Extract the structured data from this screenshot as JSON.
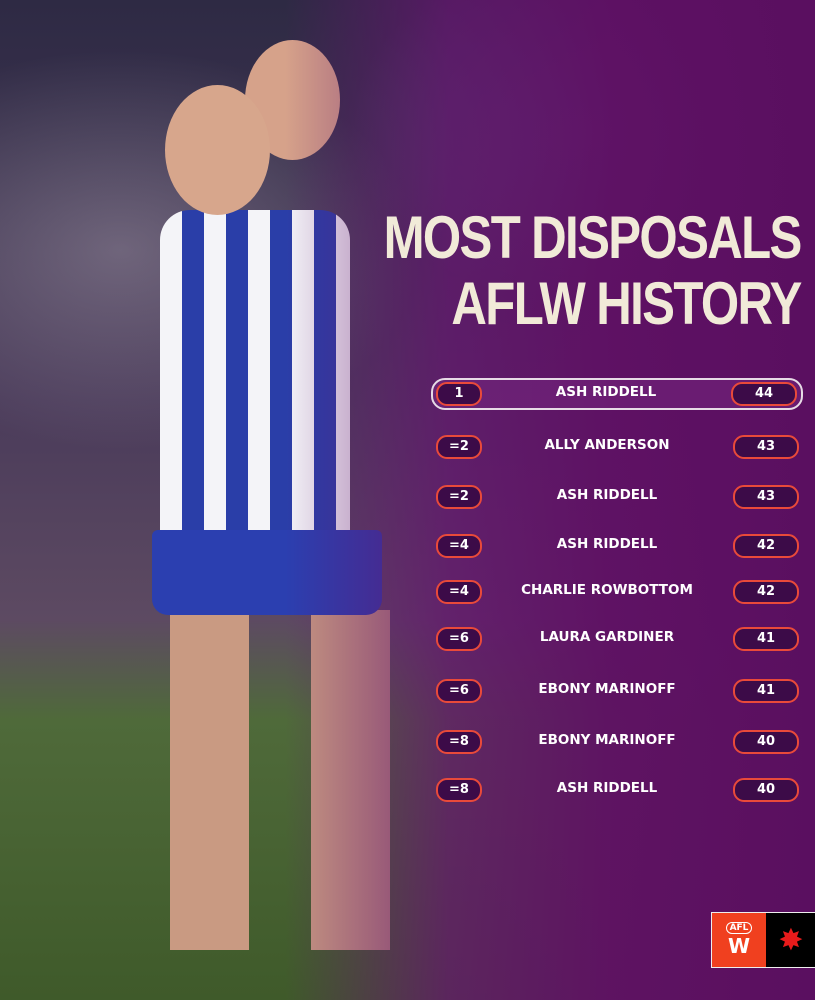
{
  "title": {
    "line1": "MOST DISPOSALS",
    "line2": "AFLW HISTORY"
  },
  "rows": [
    {
      "rank": "1",
      "name": "ASH RIDDELL",
      "value": "44"
    },
    {
      "rank": "=2",
      "name": "ALLY ANDERSON",
      "value": "43"
    },
    {
      "rank": "=2",
      "name": "ASH RIDDELL",
      "value": "43"
    },
    {
      "rank": "=4",
      "name": "ASH RIDDELL",
      "value": "42"
    },
    {
      "rank": "=4",
      "name": "CHARLIE ROWBOTTOM",
      "value": "42"
    },
    {
      "rank": "=6",
      "name": "LAURA GARDINER",
      "value": "41"
    },
    {
      "rank": "=6",
      "name": "EBONY MARINOFF",
      "value": "41"
    },
    {
      "rank": "=8",
      "name": "EBONY MARINOFF",
      "value": "40"
    },
    {
      "rank": "=8",
      "name": "ASH RIDDELL",
      "value": "40"
    }
  ],
  "logo": {
    "text": "AFL",
    "mark": "W"
  },
  "colors": {
    "accent": "#e94a3a",
    "panel": "#5a0f60",
    "title": "#f1ead8"
  }
}
